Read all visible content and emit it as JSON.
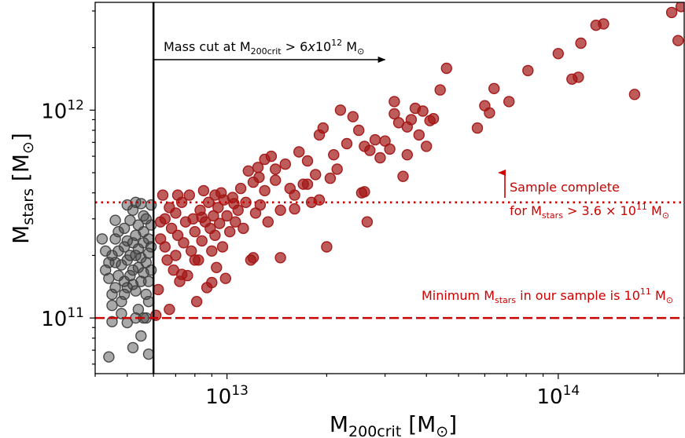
{
  "chart_data": {
    "type": "scatter",
    "x_scale": "log",
    "y_scale": "log",
    "xlim": [
      4000000000000.0,
      240000000000000.0
    ],
    "ylim": [
      54000000000.0,
      3300000000000.0
    ],
    "grid": false,
    "x_ticks": [
      {
        "value": 10000000000000.0,
        "base": "10",
        "exp": "13"
      },
      {
        "value": 100000000000000.0,
        "base": "10",
        "exp": "14"
      }
    ],
    "y_ticks": [
      {
        "value": 100000000000.0,
        "base": "10",
        "exp": "11"
      },
      {
        "value": 1000000000000.0,
        "base": "10",
        "exp": "12"
      }
    ],
    "xlabel": {
      "main": "M",
      "sub": "200crit",
      "unit_open": " [M",
      "unit_sub": "⊙",
      "unit_close": "]"
    },
    "ylabel": {
      "main": "M",
      "sub": "stars",
      "unit_open": " [M",
      "unit_sub": "⊙",
      "unit_close": "]"
    },
    "colors": {
      "selected": "#a31515",
      "excluded": "#404040",
      "annotation": "#cc0000"
    },
    "mass_cut": {
      "x": 6000000000000.0,
      "arrow_to": 30000000000000.0,
      "label_prefix": "Mass cut at M",
      "label_sub": "200crit",
      "label_cond": " > 6",
      "label_x": "x",
      "label_pow": "10",
      "label_exp": "12",
      "label_unit": " M",
      "label_unit_sub": "⊙"
    },
    "completeness": {
      "y": 360000000000.0,
      "line1": "Sample complete",
      "line2_prefix": "for M",
      "line2_sub": "stars",
      "line2_cond": " > 3.6 × 10",
      "line2_exp": "11",
      "line2_unit": " M",
      "line2_unit_sub": "⊙"
    },
    "minimum": {
      "y": 100000000000.0,
      "label_prefix": "Minimum M",
      "label_sub": "stars",
      "label_mid": " in our sample is 10",
      "label_exp": "11",
      "label_unit": " M",
      "label_unit_sub": "⊙"
    },
    "series": [
      {
        "role": "excluded",
        "points": [
          [
            4200000000000.0,
            240000000000.0
          ],
          [
            4300000000000.0,
            210000000000.0
          ],
          [
            4300000000000.0,
            170000000000.0
          ],
          [
            4400000000000.0,
            155000000000.0
          ],
          [
            4500000000000.0,
            130000000000.0
          ],
          [
            4500000000000.0,
            200000000000.0
          ],
          [
            4600000000000.0,
            185000000000.0
          ],
          [
            4600000000000.0,
            140000000000.0
          ],
          [
            4700000000000.0,
            260000000000.0
          ],
          [
            4700000000000.0,
            210000000000.0
          ],
          [
            4700000000000.0,
            160000000000.0
          ],
          [
            4800000000000.0,
            120000000000.0
          ],
          [
            4800000000000.0,
            180000000000.0
          ],
          [
            4900000000000.0,
            270000000000.0
          ],
          [
            4900000000000.0,
            150000000000.0
          ],
          [
            4900000000000.0,
            220000000000.0
          ],
          [
            5000000000000.0,
            350000000000.0
          ],
          [
            5000000000000.0,
            190000000000.0
          ],
          [
            5000000000000.0,
            140000000000.0
          ],
          [
            5100000000000.0,
            200000000000.0
          ],
          [
            5100000000000.0,
            160000000000.0
          ],
          [
            5200000000000.0,
            170000000000.0
          ],
          [
            5200000000000.0,
            230000000000.0
          ],
          [
            5200000000000.0,
            330000000000.0
          ],
          [
            5300000000000.0,
            135000000000.0
          ],
          [
            5300000000000.0,
            250000000000.0
          ],
          [
            5300000000000.0,
            200000000000.0
          ],
          [
            5400000000000.0,
            175000000000.0
          ],
          [
            5400000000000.0,
            280000000000.0
          ],
          [
            5400000000000.0,
            110000000000.0
          ],
          [
            5500000000000.0,
            195000000000.0
          ],
          [
            5500000000000.0,
            355000000000.0
          ],
          [
            5500000000000.0,
            150000000000.0
          ],
          [
            5600000000000.0,
            230000000000.0
          ],
          [
            5600000000000.0,
            165000000000.0
          ],
          [
            5600000000000.0,
            260000000000.0
          ],
          [
            5700000000000.0,
            185000000000.0
          ],
          [
            5700000000000.0,
            130000000000.0
          ],
          [
            5700000000000.0,
            300000000000.0
          ],
          [
            5800000000000.0,
            205000000000.0
          ],
          [
            5800000000000.0,
            240000000000.0
          ],
          [
            5800000000000.0,
            150000000000.0
          ],
          [
            5900000000000.0,
            170000000000.0
          ],
          [
            5900000000000.0,
            280000000000.0
          ],
          [
            5900000000000.0,
            350000000000.0
          ],
          [
            5600000000000.0,
            100000000000.0
          ],
          [
            5500000000000.0,
            82000000000.0
          ],
          [
            5800000000000.0,
            67000000000.0
          ],
          [
            5200000000000.0,
            72000000000.0
          ],
          [
            4400000000000.0,
            65000000000.0
          ],
          [
            4500000000000.0,
            96000000000.0
          ],
          [
            5000000000000.0,
            95000000000.0
          ],
          [
            5300000000000.0,
            100000000000.0
          ],
          [
            4800000000000.0,
            105000000000.0
          ],
          [
            5100000000000.0,
            295000000000.0
          ],
          [
            4600000000000.0,
            295000000000.0
          ],
          [
            5600000000000.0,
            310000000000.0
          ],
          [
            5900000000000.0,
            220000000000.0
          ],
          [
            5800000000000.0,
            120000000000.0
          ],
          [
            4500000000000.0,
            115000000000.0
          ],
          [
            4600000000000.0,
            240000000000.0
          ],
          [
            4900000000000.0,
            130000000000.0
          ],
          [
            5200000000000.0,
            145000000000.0
          ],
          [
            5400000000000.0,
            215000000000.0
          ],
          [
            5700000000000.0,
            100000000000.0
          ],
          [
            5000000000000.0,
            235000000000.0
          ],
          [
            4400000000000.0,
            185000000000.0
          ],
          [
            5300000000000.0,
            360000000000.0
          ]
        ]
      },
      {
        "role": "selected",
        "points": [
          [
            6300000000000.0,
            290000000000.0
          ],
          [
            6300000000000.0,
            240000000000.0
          ],
          [
            6400000000000.0,
            390000000000.0
          ],
          [
            6500000000000.0,
            220000000000.0
          ],
          [
            6600000000000.0,
            190000000000.0
          ],
          [
            6700000000000.0,
            340000000000.0
          ],
          [
            6800000000000.0,
            270000000000.0
          ],
          [
            6900000000000.0,
            170000000000.0
          ],
          [
            7000000000000.0,
            320000000000.0
          ],
          [
            7000000000000.0,
            200000000000.0
          ],
          [
            7100000000000.0,
            250000000000.0
          ],
          [
            7200000000000.0,
            150000000000.0
          ],
          [
            7300000000000.0,
            360000000000.0
          ],
          [
            7400000000000.0,
            230000000000.0
          ],
          [
            7500000000000.0,
            290000000000.0
          ],
          [
            7600000000000.0,
            160000000000.0
          ],
          [
            7700000000000.0,
            390000000000.0
          ],
          [
            7800000000000.0,
            210000000000.0
          ],
          [
            7900000000000.0,
            300000000000.0
          ],
          [
            8000000000000.0,
            260000000000.0
          ],
          [
            8100000000000.0,
            120000000000.0
          ],
          [
            8200000000000.0,
            190000000000.0
          ],
          [
            8300000000000.0,
            330000000000.0
          ],
          [
            8400000000000.0,
            235000000000.0
          ],
          [
            8500000000000.0,
            410000000000.0
          ],
          [
            8600000000000.0,
            290000000000.0
          ],
          [
            8700000000000.0,
            140000000000.0
          ],
          [
            8800000000000.0,
            360000000000.0
          ],
          [
            8900000000000.0,
            270000000000.0
          ],
          [
            9000000000000.0,
            210000000000.0
          ],
          [
            9100000000000.0,
            310000000000.0
          ],
          [
            9200000000000.0,
            250000000000.0
          ],
          [
            9300000000000.0,
            175000000000.0
          ],
          [
            9400000000000.0,
            340000000000.0
          ],
          [
            9500000000000.0,
            285000000000.0
          ],
          [
            9600000000000.0,
            400000000000.0
          ],
          [
            9700000000000.0,
            220000000000.0
          ],
          [
            9800000000000.0,
            370000000000.0
          ],
          [
            9900000000000.0,
            155000000000.0
          ],
          [
            10000000000000.0,
            310000000000.0
          ],
          [
            10200000000000.0,
            260000000000.0
          ],
          [
            10400000000000.0,
            380000000000.0
          ],
          [
            10600000000000.0,
            290000000000.0
          ],
          [
            10800000000000.0,
            330000000000.0
          ],
          [
            11000000000000.0,
            420000000000.0
          ],
          [
            11200000000000.0,
            270000000000.0
          ],
          [
            11400000000000.0,
            360000000000.0
          ],
          [
            11600000000000.0,
            510000000000.0
          ],
          [
            11800000000000.0,
            190000000000.0
          ],
          [
            12000000000000.0,
            450000000000.0
          ],
          [
            12200000000000.0,
            320000000000.0
          ],
          [
            12400000000000.0,
            530000000000.0
          ],
          [
            12600000000000.0,
            350000000000.0
          ],
          [
            13000000000000.0,
            410000000000.0
          ],
          [
            13300000000000.0,
            290000000000.0
          ],
          [
            13600000000000.0,
            600000000000.0
          ],
          [
            14000000000000.0,
            460000000000.0
          ],
          [
            14500000000000.0,
            330000000000.0
          ],
          [
            15000000000000.0,
            550000000000.0
          ],
          [
            15500000000000.0,
            420000000000.0
          ],
          [
            16000000000000.0,
            390000000000.0
          ],
          [
            16500000000000.0,
            630000000000.0
          ],
          [
            17000000000000.0,
            440000000000.0
          ],
          [
            17500000000000.0,
            570000000000.0
          ],
          [
            18000000000000.0,
            360000000000.0
          ],
          [
            18500000000000.0,
            490000000000.0
          ],
          [
            19000000000000.0,
            760000000000.0
          ],
          [
            19500000000000.0,
            820000000000.0
          ],
          [
            20000000000000.0,
            220000000000.0
          ],
          [
            20500000000000.0,
            470000000000.0
          ],
          [
            21000000000000.0,
            610000000000.0
          ],
          [
            21500000000000.0,
            520000000000.0
          ],
          [
            22000000000000.0,
            1000000000000.0
          ],
          [
            23000000000000.0,
            690000000000.0
          ],
          [
            24000000000000.0,
            930000000000.0
          ],
          [
            25000000000000.0,
            800000000000.0
          ],
          [
            25500000000000.0,
            400000000000.0
          ],
          [
            26000000000000.0,
            670000000000.0
          ],
          [
            26500000000000.0,
            290000000000.0
          ],
          [
            27000000000000.0,
            640000000000.0
          ],
          [
            28000000000000.0,
            720000000000.0
          ],
          [
            29000000000000.0,
            590000000000.0
          ],
          [
            30000000000000.0,
            710000000000.0
          ],
          [
            31000000000000.0,
            650000000000.0
          ],
          [
            32000000000000.0,
            960000000000.0
          ],
          [
            33000000000000.0,
            870000000000.0
          ],
          [
            34000000000000.0,
            480000000000.0
          ],
          [
            35000000000000.0,
            830000000000.0
          ],
          [
            36000000000000.0,
            900000000000.0
          ],
          [
            37000000000000.0,
            1020000000000.0
          ],
          [
            38000000000000.0,
            760000000000.0
          ],
          [
            39000000000000.0,
            990000000000.0
          ],
          [
            40000000000000.0,
            670000000000.0
          ],
          [
            41000000000000.0,
            890000000000.0
          ],
          [
            42000000000000.0,
            910000000000.0
          ],
          [
            44000000000000.0,
            1250000000000.0
          ],
          [
            46000000000000.0,
            1590000000000.0
          ],
          [
            57000000000000.0,
            820000000000.0
          ],
          [
            60000000000000.0,
            1050000000000.0
          ],
          [
            62000000000000.0,
            970000000000.0
          ],
          [
            64000000000000.0,
            1270000000000.0
          ],
          [
            71000000000000.0,
            1100000000000.0
          ],
          [
            81000000000000.0,
            1550000000000.0
          ],
          [
            100000000000000.0,
            1870000000000.0
          ],
          [
            110000000000000.0,
            1410000000000.0
          ],
          [
            115000000000000.0,
            1440000000000.0
          ],
          [
            117000000000000.0,
            2100000000000.0
          ],
          [
            130000000000000.0,
            2560000000000.0
          ],
          [
            137000000000000.0,
            2600000000000.0
          ],
          [
            170000000000000.0,
            1190000000000.0
          ],
          [
            220000000000000.0,
            2950000000000.0
          ],
          [
            230000000000000.0,
            2160000000000.0
          ],
          [
            235000000000000.0,
            3150000000000.0
          ],
          [
            6200000000000.0,
            137000000000.0
          ],
          [
            6700000000000.0,
            110000000000.0
          ],
          [
            6100000000000.0,
            103000000000.0
          ],
          [
            7300000000000.0,
            162000000000.0
          ],
          [
            8000000000000.0,
            190000000000.0
          ],
          [
            9000000000000.0,
            148000000000.0
          ],
          [
            12000000000000.0,
            195000000000.0
          ],
          [
            14500000000000.0,
            195000000000.0
          ],
          [
            6500000000000.0,
            300000000000.0
          ],
          [
            7100000000000.0,
            390000000000.0
          ],
          [
            8400000000000.0,
            305000000000.0
          ],
          [
            9200000000000.0,
            390000000000.0
          ],
          [
            10500000000000.0,
            355000000000.0
          ],
          [
            12500000000000.0,
            475000000000.0
          ],
          [
            13000000000000.0,
            580000000000.0
          ],
          [
            14000000000000.0,
            520000000000.0
          ],
          [
            16000000000000.0,
            335000000000.0
          ],
          [
            17500000000000.0,
            440000000000.0
          ],
          [
            19000000000000.0,
            370000000000.0
          ],
          [
            26000000000000.0,
            405000000000.0
          ],
          [
            32000000000000.0,
            1100000000000.0
          ],
          [
            35000000000000.0,
            610000000000.0
          ]
        ]
      }
    ]
  }
}
